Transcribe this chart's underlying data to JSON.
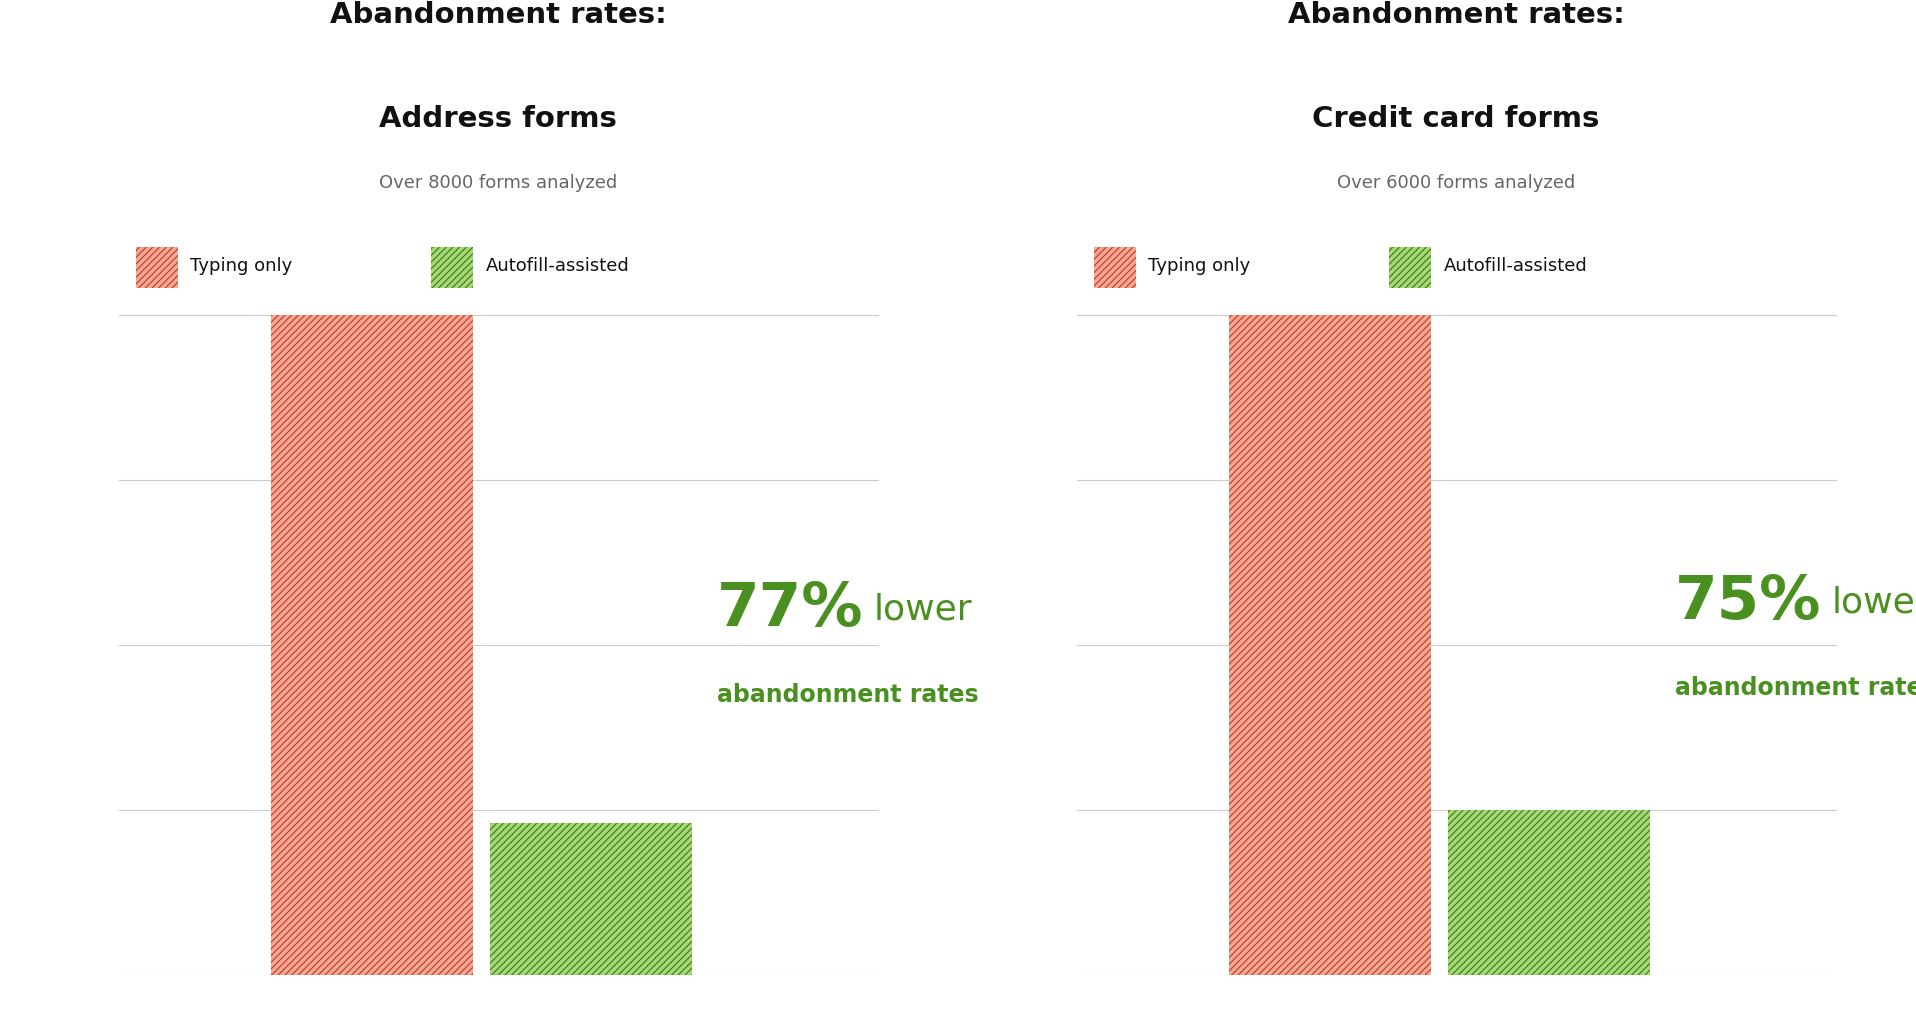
{
  "charts": [
    {
      "title_line1": "Abandonment rates:",
      "title_line2": "Address forms",
      "subtitle": "Over 8000 forms analyzed",
      "typing_value": 1.0,
      "autofill_value": 0.23,
      "reduction_pct": "77%",
      "reduction_word": "lower",
      "reduction_sub": "abandonment rates"
    },
    {
      "title_line1": "Abandonment rates:",
      "title_line2": "Credit card forms",
      "subtitle": "Over 6000 forms analyzed",
      "typing_value": 1.0,
      "autofill_value": 0.25,
      "reduction_pct": "75%",
      "reduction_word": "lower",
      "reduction_sub": "abandonment rates"
    }
  ],
  "legend_typing": "Typing only",
  "legend_autofill": "Autofill-assisted",
  "red_face_color": "#F5A898",
  "red_hatch_color": "#C84B2F",
  "green_face_color": "#A8D878",
  "green_hatch_color": "#4A8A20",
  "green_text_color": "#4A9020",
  "background_color": "#FFFFFF",
  "grid_color": "#CCCCCC",
  "title_color": "#111111",
  "subtitle_color": "#666666",
  "ylim": [
    0,
    1.12
  ],
  "yticks": [
    0.0,
    0.25,
    0.5,
    0.75,
    1.0
  ]
}
